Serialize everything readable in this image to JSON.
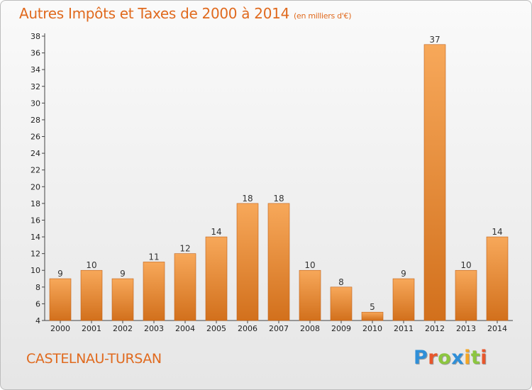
{
  "header": {
    "title": "Autres Impôts et Taxes de 2000 à 2014",
    "subtitle": "(en milliers d'€)"
  },
  "footer": {
    "commune": "CASTELNAU-TURSAN",
    "logo_letters": [
      {
        "ch": "P",
        "color": "#2f8fd8"
      },
      {
        "ch": "r",
        "color": "#e8562b"
      },
      {
        "ch": "o",
        "color": "#8cc63f"
      },
      {
        "ch": "x",
        "color": "#2f8fd8"
      },
      {
        "ch": "i",
        "color": "#f5a623"
      },
      {
        "ch": "t",
        "color": "#8cc63f"
      },
      {
        "ch": "i",
        "color": "#e8562b"
      }
    ]
  },
  "colors": {
    "accent": "#e06a1e",
    "bar_light": "#f7a85a",
    "bar_dark": "#d2701c",
    "bar_stroke": "#c0621a"
  },
  "chart_data": {
    "type": "bar",
    "title": "Autres Impôts et Taxes de 2000 à 2014",
    "subtitle": "(en milliers d'€)",
    "categories": [
      "2000",
      "2001",
      "2002",
      "2003",
      "2004",
      "2005",
      "2006",
      "2007",
      "2008",
      "2009",
      "2010",
      "2011",
      "2012",
      "2013",
      "2014"
    ],
    "values": [
      9,
      10,
      9,
      11,
      12,
      14,
      18,
      18,
      10,
      8,
      5,
      9,
      37,
      10,
      14
    ],
    "ylim": [
      4,
      38
    ],
    "yticks": [
      4,
      6,
      8,
      10,
      12,
      14,
      16,
      18,
      20,
      22,
      24,
      26,
      28,
      30,
      32,
      34,
      36,
      38
    ],
    "grid": false,
    "legend": "none"
  }
}
